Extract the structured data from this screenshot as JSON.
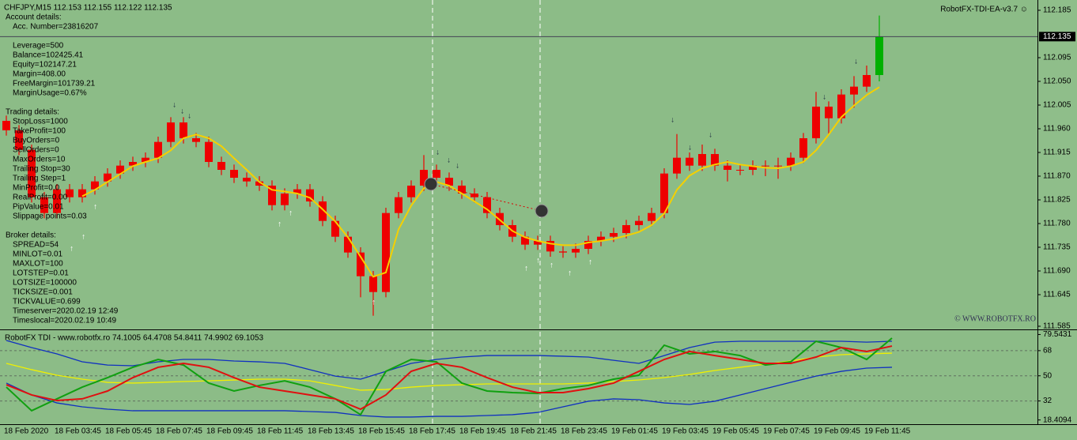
{
  "symbol_line": "CHFJPY,M15  112.153 112.155 112.122 112.135",
  "ea_name": "RobotFX-TDI-EA-v3.7 ☺",
  "copyright": "© WWW.ROBOTFX.RO",
  "info_blocks": [
    {
      "title": "Account details:",
      "lines": [
        "Acc. Number=23816207"
      ]
    },
    {
      "lines": [
        "Leverage=500",
        "Balance=102425.41",
        "Equity=102147.21",
        "Margin=408.00",
        "FreeMargin=101739.21",
        "MarginUsage=0.67%"
      ]
    },
    {
      "title": "Trading details:",
      "lines": [
        "StopLoss=1000",
        "TakeProfit=100",
        "BuyOrders=0",
        "SellOrders=0",
        "MaxOrders=10",
        "Trailing Stop=30",
        "Trailing Step=1",
        "MinProfit=0.0",
        "RealProfit=0.00",
        "PipValue=0.01",
        "Slippage points=0.03"
      ]
    },
    {
      "title": "Broker details:",
      "lines": [
        "SPREAD=54",
        "MINLOT=0.01",
        "MAXLOT=100",
        "LOTSTEP=0.01",
        "LOTSIZE=100000",
        "TICKSIZE=0.001",
        "TICKVALUE=0.699",
        "Timeserver=2020.02.19 12:49",
        "Timeslocal=2020.02.19 10:49"
      ]
    }
  ],
  "time_labels": [
    "18 Feb 2020",
    "18 Feb 03:45",
    "18 Feb 05:45",
    "18 Feb 07:45",
    "18 Feb 09:45",
    "18 Feb 11:45",
    "18 Feb 13:45",
    "18 Feb 15:45",
    "18 Feb 17:45",
    "18 Feb 19:45",
    "18 Feb 21:45",
    "18 Feb 23:45",
    "19 Feb 01:45",
    "19 Feb 03:45",
    "19 Feb 05:45",
    "19 Feb 07:45",
    "19 Feb 09:45",
    "19 Feb 11:45"
  ],
  "chart_data": [
    {
      "type": "candlestick",
      "color": "#ee0000",
      "last_color": "#00b000",
      "ylim": [
        111.5805,
        112.2045
      ],
      "yticks": [
        112.185,
        112.095,
        {
          "value": 112.05,
          "label": "112.050"
        },
        112.005,
        {
          "value": 111.96,
          "label": "111.960"
        },
        111.915,
        {
          "value": 111.87,
          "label": "111.870"
        },
        111.825,
        {
          "value": 111.78,
          "label": "111.780"
        },
        111.735,
        {
          "value": 111.69,
          "label": "111.690"
        },
        111.645,
        111.585
      ],
      "current_price": 112.135,
      "open": [
        111.975,
        111.957,
        111.92,
        111.83,
        111.8,
        111.845,
        111.83,
        111.845,
        111.86,
        111.875,
        111.89,
        111.897,
        111.905,
        111.935,
        111.972,
        111.942,
        111.935,
        111.897,
        111.882,
        111.867,
        111.86,
        111.852,
        111.815,
        111.837,
        111.845,
        111.822,
        111.785,
        111.755,
        111.725,
        111.68,
        111.65,
        111.8,
        111.83,
        111.852,
        111.882,
        111.867,
        111.852,
        111.837,
        111.83,
        111.8,
        111.777,
        111.755,
        111.74,
        111.747,
        111.727,
        111.725,
        111.732,
        111.747,
        111.755,
        111.762,
        111.777,
        111.785,
        111.8,
        111.875,
        111.905,
        111.89,
        111.912,
        111.89,
        111.882,
        111.882,
        111.89,
        111.89,
        111.89,
        111.905,
        111.942,
        112.002,
        111.98,
        112.025,
        112.04,
        112.062
      ],
      "high": [
        111.985,
        111.967,
        111.93,
        111.84,
        111.855,
        111.855,
        111.855,
        111.87,
        111.885,
        111.9,
        111.907,
        111.915,
        111.945,
        111.982,
        111.982,
        111.952,
        111.945,
        111.907,
        111.892,
        111.877,
        111.87,
        111.862,
        111.847,
        111.855,
        111.855,
        111.832,
        111.795,
        111.765,
        111.735,
        111.69,
        111.81,
        111.84,
        111.862,
        111.91,
        111.892,
        111.877,
        111.862,
        111.847,
        111.84,
        111.81,
        111.787,
        111.765,
        111.757,
        111.757,
        111.737,
        111.742,
        111.757,
        111.765,
        111.772,
        111.787,
        111.795,
        111.81,
        111.885,
        111.95,
        111.915,
        111.93,
        111.922,
        111.9,
        111.892,
        111.9,
        111.9,
        111.905,
        111.915,
        111.952,
        112.03,
        112.012,
        112.035,
        112.06,
        112.08,
        112.175
      ],
      "low": [
        111.947,
        111.91,
        111.82,
        111.79,
        111.79,
        111.82,
        111.82,
        111.835,
        111.85,
        111.865,
        111.88,
        111.887,
        111.895,
        111.925,
        111.932,
        111.925,
        111.887,
        111.872,
        111.857,
        111.85,
        111.842,
        111.805,
        111.805,
        111.827,
        111.812,
        111.775,
        111.745,
        111.715,
        111.64,
        111.605,
        111.64,
        111.79,
        111.82,
        111.842,
        111.857,
        111.842,
        111.827,
        111.82,
        111.79,
        111.767,
        111.745,
        111.73,
        111.73,
        111.717,
        111.715,
        111.715,
        111.722,
        111.737,
        111.745,
        111.752,
        111.767,
        111.775,
        111.79,
        111.865,
        111.88,
        111.88,
        111.88,
        111.86,
        111.872,
        111.872,
        111.87,
        111.865,
        111.88,
        111.895,
        111.932,
        111.95,
        111.97,
        112.0,
        112.03,
        112.05
      ],
      "close": [
        111.957,
        111.92,
        111.83,
        111.8,
        111.845,
        111.83,
        111.845,
        111.86,
        111.875,
        111.89,
        111.897,
        111.905,
        111.935,
        111.972,
        111.942,
        111.935,
        111.897,
        111.882,
        111.867,
        111.86,
        111.852,
        111.815,
        111.837,
        111.845,
        111.822,
        111.785,
        111.755,
        111.725,
        111.68,
        111.65,
        111.8,
        111.83,
        111.852,
        111.882,
        111.867,
        111.852,
        111.837,
        111.83,
        111.8,
        111.777,
        111.755,
        111.74,
        111.747,
        111.727,
        111.725,
        111.732,
        111.747,
        111.755,
        111.762,
        111.777,
        111.785,
        111.8,
        111.875,
        111.905,
        111.89,
        111.912,
        111.89,
        111.882,
        111.882,
        111.89,
        111.89,
        111.89,
        111.905,
        111.942,
        112.002,
        111.98,
        112.025,
        112.04,
        112.062,
        112.135
      ],
      "series": [
        {
          "color": "#f5d000",
          "values": [
            null,
            null,
            null,
            null,
            null,
            null,
            111.832,
            111.844,
            111.859,
            111.874,
            111.889,
            111.897,
            111.904,
            111.919,
            111.942,
            111.949,
            111.942,
            111.927,
            111.904,
            111.882,
            111.859,
            111.844,
            111.841,
            111.837,
            111.829,
            111.807,
            111.784,
            111.754,
            111.717,
            111.679,
            111.687,
            111.769,
            111.814,
            111.847,
            111.859,
            111.852,
            111.837,
            111.822,
            111.807,
            111.787,
            111.766,
            111.754,
            111.747,
            111.742,
            111.739,
            111.739,
            111.744,
            111.747,
            111.751,
            111.757,
            111.764,
            111.777,
            111.799,
            111.844,
            111.871,
            111.885,
            111.892,
            111.897,
            111.892,
            111.889,
            111.886,
            111.885,
            111.889,
            111.897,
            111.919,
            111.949,
            111.982,
            112.004,
            112.024,
            112.039
          ]
        }
      ]
    },
    {
      "type": "line",
      "title": "RobotFX TDI - www.robotfx.ro 74.1005 64.4708 54.8411 74.9902 69.1053",
      "ylim": [
        16.5,
        81.5
      ],
      "yticks": [
        79.5431,
        68,
        50,
        32,
        18.4094
      ],
      "levels": [
        68,
        50,
        32
      ],
      "series": [
        {
          "color": "#1030c0",
          "values": [
            75.3,
            70.2,
            65.7,
            60.0,
            57.7,
            57.2,
            60.0,
            61.7,
            61.7,
            60.6,
            60.0,
            58.9,
            54.4,
            49.8,
            47.6,
            53.2,
            58.9,
            61.7,
            63.4,
            64.5,
            64.5,
            64.5,
            64.0,
            63.4,
            61.1,
            58.9,
            64.5,
            70.2,
            74.1,
            74.7,
            74.7,
            74.7,
            74.7,
            74.7,
            74.1,
            74.7
          ]
        },
        {
          "color": "#1030c0",
          "values": [
            44.8,
            36.3,
            30.6,
            27.8,
            26.1,
            25.0,
            25.0,
            25.0,
            25.0,
            25.0,
            25.0,
            25.0,
            24.4,
            23.8,
            21.6,
            20.5,
            20.5,
            21.0,
            21.0,
            21.6,
            22.2,
            23.8,
            27.8,
            31.8,
            33.5,
            32.9,
            30.6,
            29.5,
            31.8,
            36.3,
            40.8,
            45.3,
            49.8,
            53.2,
            55.5,
            56.1
          ]
        },
        {
          "color": "#f0f000",
          "values": [
            58.9,
            54.4,
            50.4,
            47.6,
            45.3,
            44.8,
            45.3,
            45.9,
            46.4,
            47.0,
            47.6,
            47.6,
            46.4,
            43.1,
            39.7,
            40.2,
            41.9,
            43.1,
            43.6,
            44.2,
            44.2,
            44.2,
            44.2,
            44.8,
            45.9,
            47.0,
            48.7,
            51.0,
            53.8,
            56.1,
            58.3,
            60.6,
            63.4,
            65.1,
            65.7,
            66.2
          ]
        },
        {
          "color": "#10a010",
          "values": [
            41.9,
            25.0,
            33.5,
            41.9,
            48.7,
            56.1,
            61.7,
            57.7,
            44.8,
            39.1,
            43.1,
            46.4,
            41.9,
            33.5,
            22.2,
            53.2,
            61.7,
            60.0,
            44.8,
            39.1,
            38.0,
            37.4,
            40.8,
            43.1,
            47.6,
            50.4,
            71.9,
            65.7,
            67.4,
            64.5,
            57.7,
            60.0,
            74.7,
            70.2,
            61.7,
            77.0
          ]
        },
        {
          "color": "#e01010",
          "values": [
            43.6,
            36.3,
            32.3,
            33.5,
            39.1,
            48.7,
            56.1,
            58.9,
            56.1,
            48.7,
            41.9,
            39.1,
            36.3,
            33.5,
            26.1,
            36.3,
            53.2,
            58.9,
            56.1,
            48.7,
            41.9,
            38.0,
            38.0,
            40.8,
            44.8,
            53.2,
            61.7,
            67.4,
            64.5,
            61.7,
            58.9,
            58.9,
            63.4,
            70.2,
            67.4,
            71.3
          ]
        }
      ]
    }
  ]
}
